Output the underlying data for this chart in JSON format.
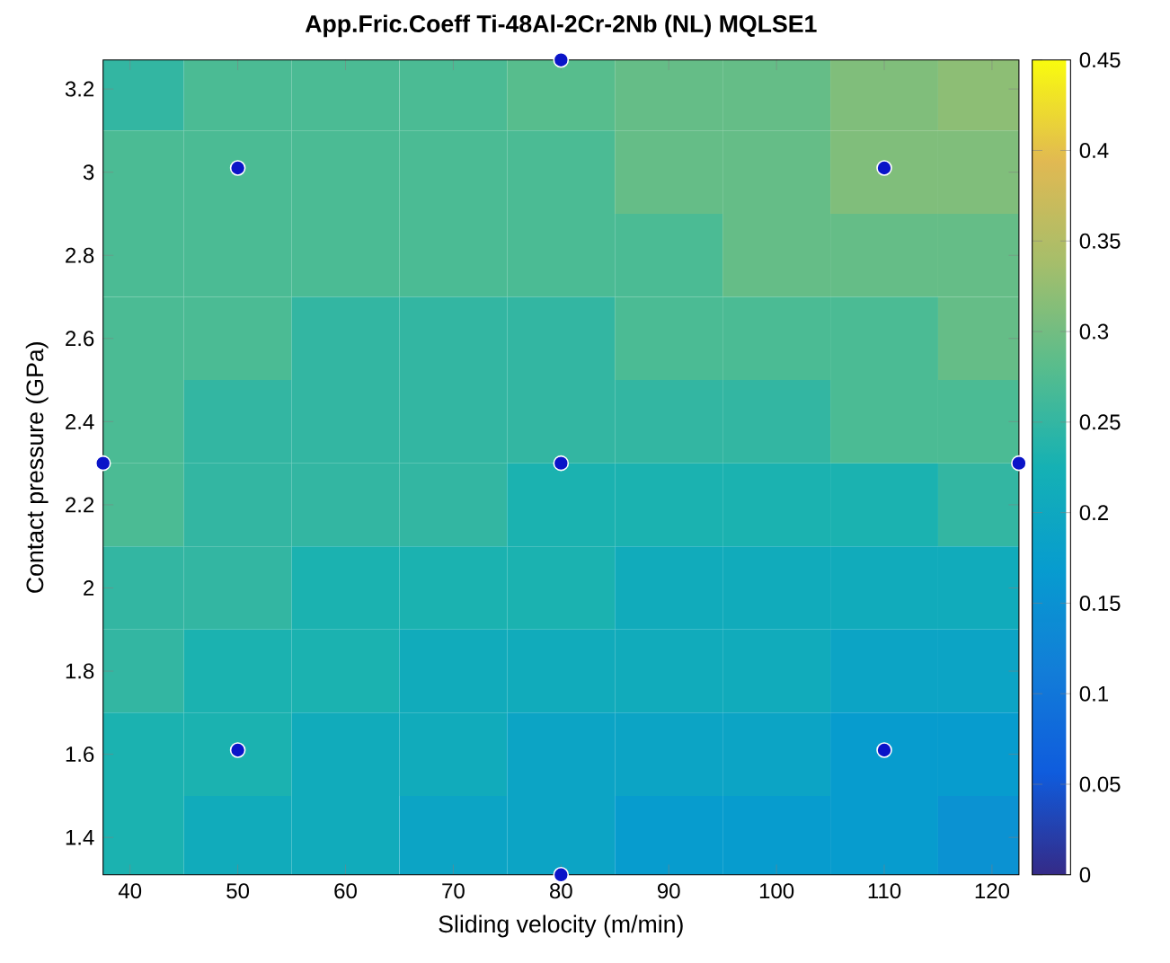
{
  "chart_data": {
    "type": "heatmap",
    "title": "App.Fric.Coeff Ti-48Al-2Cr-2Nb (NL) MQLSE1",
    "xlabel": "Sliding velocity (m/min)",
    "ylabel": "Contact pressure (GPa)",
    "x": [
      40,
      50,
      60,
      70,
      80,
      90,
      100,
      110,
      120
    ],
    "y": [
      3.2,
      3.0,
      2.8,
      2.6,
      2.4,
      2.2,
      2.0,
      1.8,
      1.6,
      1.4
    ],
    "cells": [
      [
        0.25,
        0.27,
        0.27,
        0.27,
        0.28,
        0.29,
        0.29,
        0.31,
        0.32
      ],
      [
        0.27,
        0.27,
        0.27,
        0.27,
        0.27,
        0.29,
        0.29,
        0.31,
        0.31
      ],
      [
        0.27,
        0.27,
        0.27,
        0.27,
        0.27,
        0.27,
        0.29,
        0.29,
        0.29
      ],
      [
        0.27,
        0.27,
        0.25,
        0.25,
        0.25,
        0.27,
        0.27,
        0.27,
        0.29
      ],
      [
        0.27,
        0.25,
        0.25,
        0.25,
        0.25,
        0.25,
        0.25,
        0.27,
        0.27
      ],
      [
        0.27,
        0.25,
        0.25,
        0.25,
        0.23,
        0.23,
        0.23,
        0.23,
        0.25
      ],
      [
        0.25,
        0.25,
        0.23,
        0.23,
        0.23,
        0.21,
        0.21,
        0.21,
        0.21
      ],
      [
        0.25,
        0.23,
        0.23,
        0.21,
        0.21,
        0.21,
        0.21,
        0.19,
        0.19
      ],
      [
        0.23,
        0.23,
        0.21,
        0.21,
        0.19,
        0.19,
        0.19,
        0.17,
        0.17
      ],
      [
        0.23,
        0.21,
        0.21,
        0.19,
        0.19,
        0.17,
        0.17,
        0.17,
        0.15
      ]
    ],
    "xlim": [
      37.5,
      122.5
    ],
    "ylim": [
      1.31,
      3.27
    ],
    "xticks": [
      40,
      50,
      60,
      70,
      80,
      90,
      100,
      110,
      120
    ],
    "yticks": [
      1.4,
      1.6,
      1.8,
      2,
      2.2,
      2.4,
      2.6,
      2.8,
      3,
      3.2
    ],
    "clim": [
      0,
      0.45
    ],
    "cticks": [
      0,
      0.05,
      0.1,
      0.15,
      0.2,
      0.25,
      0.3,
      0.35,
      0.4,
      0.45
    ],
    "series": [
      {
        "type": "scatter",
        "color": "#0a14c8",
        "marker": "circle",
        "x": [
          37.5,
          50,
          50,
          80,
          80,
          80,
          110,
          110,
          122.5
        ],
        "values": [
          2.3,
          3.01,
          1.61,
          3.27,
          2.3,
          1.31,
          3.01,
          1.61,
          2.3
        ]
      }
    ],
    "grid": false
  }
}
